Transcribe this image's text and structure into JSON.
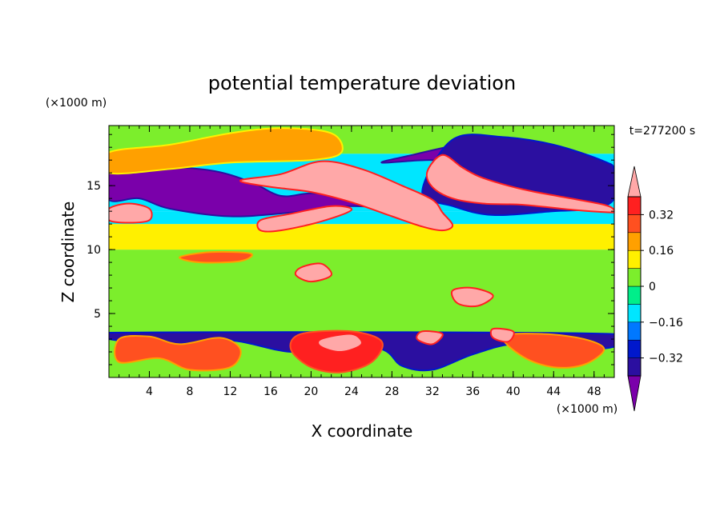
{
  "chart_data": {
    "type": "heatmap",
    "title": "potential temperature deviation",
    "time_label": "t=277200 s",
    "xlabel": "X coordinate",
    "ylabel": "Z coordinate",
    "x_unit": "(×1000 m)",
    "y_unit": "(×1000 m)",
    "xlim": [
      0,
      50
    ],
    "ylim": [
      0,
      19.7
    ],
    "x_ticks": [
      4,
      8,
      12,
      16,
      20,
      24,
      28,
      32,
      36,
      40,
      44,
      48
    ],
    "y_ticks": [
      5,
      10,
      15
    ],
    "colorbar": {
      "levels": [
        -0.4,
        -0.32,
        -0.24,
        -0.16,
        -0.08,
        0,
        0.08,
        0.16,
        0.24,
        0.32,
        0.4
      ],
      "tick_labels": [
        {
          "value": 0.32,
          "label": "0.32"
        },
        {
          "value": 0.16,
          "label": "0.16"
        },
        {
          "value": 0,
          "label": "0"
        },
        {
          "value": -0.16,
          "label": "−0.16"
        },
        {
          "value": -0.32,
          "label": "−0.32"
        }
      ],
      "colors": [
        "#7a00aa",
        "#2b0fa0",
        "#0018cc",
        "#0078ff",
        "#00e6ff",
        "#00ee8a",
        "#7cee2c",
        "#fff000",
        "#ffa000",
        "#ff5020",
        "#ff2020",
        "#ffa8a8"
      ],
      "extend": "both"
    },
    "features": [
      {
        "name": "upper-cold-band-west",
        "level": -0.45,
        "points": [
          [
            0,
            16.3
          ],
          [
            4,
            16.5
          ],
          [
            10,
            16.2
          ],
          [
            14,
            15.3
          ],
          [
            17,
            14.2
          ],
          [
            20,
            14.4
          ],
          [
            24,
            14.2
          ],
          [
            27,
            13.2
          ],
          [
            29,
            12.4
          ],
          [
            29,
            13.0
          ],
          [
            24,
            13.4
          ],
          [
            18,
            12.9
          ],
          [
            12,
            12.6
          ],
          [
            6,
            13.2
          ],
          [
            3,
            14.0
          ],
          [
            0,
            13.9
          ]
        ]
      },
      {
        "name": "upper-cold-band-east",
        "level": -0.45,
        "points": [
          [
            27,
            16.8
          ],
          [
            32,
            17.0
          ],
          [
            35,
            16.5
          ],
          [
            38,
            15.3
          ],
          [
            42,
            14.7
          ],
          [
            46,
            14.0
          ],
          [
            48.5,
            13.8
          ],
          [
            50,
            14.3
          ],
          [
            50,
            15.4
          ],
          [
            47,
            16.2
          ],
          [
            44,
            17.1
          ],
          [
            41,
            17.7
          ],
          [
            37,
            18.3
          ],
          [
            34,
            18.1
          ],
          [
            30,
            17.4
          ]
        ]
      },
      {
        "name": "deep-blue-east",
        "level": -0.36,
        "points": [
          [
            34,
            18.6
          ],
          [
            39,
            18.8
          ],
          [
            44,
            18.2
          ],
          [
            49,
            16.9
          ],
          [
            50,
            16.2
          ],
          [
            50,
            14.0
          ],
          [
            48,
            13.2
          ],
          [
            44,
            13.0
          ],
          [
            38,
            12.7
          ],
          [
            34,
            13.4
          ],
          [
            31,
            14.5
          ]
        ]
      },
      {
        "name": "warm-tongue-west",
        "level": 0.45,
        "points": [
          [
            13,
            15.4
          ],
          [
            17,
            15.9
          ],
          [
            21,
            16.9
          ],
          [
            25,
            16.3
          ],
          [
            29,
            15.0
          ],
          [
            32,
            13.9
          ],
          [
            33,
            12.9
          ],
          [
            34,
            11.9
          ],
          [
            33,
            11.5
          ],
          [
            31,
            11.8
          ],
          [
            28,
            12.6
          ],
          [
            24,
            13.7
          ],
          [
            20,
            14.5
          ],
          [
            16,
            14.9
          ]
        ]
      },
      {
        "name": "warm-tongue-east",
        "level": 0.45,
        "points": [
          [
            33,
            17.4
          ],
          [
            35,
            16.4
          ],
          [
            37,
            15.6
          ],
          [
            41,
            14.7
          ],
          [
            45,
            14.1
          ],
          [
            49,
            13.5
          ],
          [
            50,
            13.1
          ],
          [
            50,
            12.9
          ],
          [
            46,
            13.1
          ],
          [
            41,
            13.5
          ],
          [
            37,
            13.6
          ],
          [
            34,
            14.0
          ],
          [
            32,
            14.9
          ],
          [
            31.5,
            16.1
          ]
        ]
      },
      {
        "name": "warm-patch-mid",
        "level": 0.45,
        "points": [
          [
            15,
            12.3
          ],
          [
            18,
            12.8
          ],
          [
            22,
            13.4
          ],
          [
            24,
            13.1
          ],
          [
            21,
            12.2
          ],
          [
            17,
            11.5
          ],
          [
            15,
            11.5
          ]
        ]
      },
      {
        "name": "warm-patch-left",
        "level": 0.45,
        "points": [
          [
            0,
            13.2
          ],
          [
            2,
            13.6
          ],
          [
            4,
            13.2
          ],
          [
            4,
            12.3
          ],
          [
            2,
            12.1
          ],
          [
            0,
            12.3
          ]
        ]
      },
      {
        "name": "top-warm-arc",
        "level": 0.3,
        "points": [
          [
            1,
            17.2
          ],
          [
            6,
            17.7
          ],
          [
            12,
            18.6
          ],
          [
            17,
            19.0
          ],
          [
            21,
            18.7
          ],
          [
            22,
            17.5
          ],
          [
            18,
            17.6
          ],
          [
            12,
            17.2
          ],
          [
            7,
            16.6
          ],
          [
            1,
            16.2
          ]
        ]
      },
      {
        "name": "top-yellow-arc",
        "level": 0.18,
        "points": [
          [
            0,
            17.6
          ],
          [
            6,
            18.2
          ],
          [
            12,
            19.1
          ],
          [
            17,
            19.5
          ],
          [
            22,
            19.1
          ],
          [
            23,
            17.6
          ],
          [
            20,
            17.0
          ],
          [
            12,
            16.8
          ],
          [
            6,
            16.3
          ],
          [
            0,
            16.0
          ]
        ]
      },
      {
        "name": "mid-warm-9km",
        "level": 0.3,
        "points": [
          [
            7,
            9.4
          ],
          [
            10,
            9.8
          ],
          [
            14,
            9.7
          ],
          [
            13,
            9.1
          ],
          [
            9,
            9.0
          ]
        ]
      },
      {
        "name": "mid-warm-7km",
        "level": 0.45,
        "points": [
          [
            19,
            8.6
          ],
          [
            21,
            8.9
          ],
          [
            22,
            8.0
          ],
          [
            20,
            7.5
          ],
          [
            18.5,
            8.0
          ]
        ]
      },
      {
        "name": "warm-cloud-36",
        "level": 0.45,
        "points": [
          [
            34,
            6.8
          ],
          [
            36,
            7.0
          ],
          [
            38,
            6.4
          ],
          [
            36.5,
            5.6
          ],
          [
            34.5,
            5.8
          ]
        ]
      },
      {
        "name": "low-cold-band",
        "level": -0.36,
        "points": [
          [
            0,
            3.5
          ],
          [
            50,
            3.4
          ],
          [
            50,
            2.4
          ],
          [
            44,
            2.1
          ],
          [
            40,
            2.6
          ],
          [
            36,
            1.8
          ],
          [
            32,
            0.6
          ],
          [
            29,
            0.9
          ],
          [
            27,
            2.2
          ],
          [
            22,
            2.6
          ],
          [
            18,
            2.0
          ],
          [
            12,
            2.9
          ],
          [
            6,
            2.6
          ],
          [
            0,
            3.0
          ]
        ]
      },
      {
        "name": "low-warm-cluster-west",
        "level": 0.3,
        "points": [
          [
            1,
            3.0
          ],
          [
            4,
            3.2
          ],
          [
            7,
            2.6
          ],
          [
            11,
            3.1
          ],
          [
            13,
            2.2
          ],
          [
            12,
            0.8
          ],
          [
            8,
            0.6
          ],
          [
            5,
            1.5
          ],
          [
            1,
            1.2
          ]
        ]
      },
      {
        "name": "low-warm-cluster-mid",
        "level": 0.36,
        "points": [
          [
            19,
            3.4
          ],
          [
            24,
            3.6
          ],
          [
            27,
            2.8
          ],
          [
            26,
            1.2
          ],
          [
            23,
            0.4
          ],
          [
            20,
            0.8
          ],
          [
            18,
            2.2
          ]
        ]
      },
      {
        "name": "low-warm-cluster-east",
        "level": 0.3,
        "points": [
          [
            39,
            3.2
          ],
          [
            43,
            3.4
          ],
          [
            47,
            3.0
          ],
          [
            49,
            2.2
          ],
          [
            47,
            1.0
          ],
          [
            44,
            0.8
          ],
          [
            41,
            1.6
          ]
        ]
      },
      {
        "name": "low-pink-23",
        "level": 0.45,
        "points": [
          [
            21,
            3.0
          ],
          [
            24,
            3.4
          ],
          [
            25,
            2.6
          ],
          [
            23,
            2.0
          ],
          [
            21,
            2.4
          ]
        ]
      },
      {
        "name": "low-pink-32",
        "level": 0.45,
        "points": [
          [
            31,
            3.6
          ],
          [
            33,
            3.4
          ],
          [
            32,
            2.6
          ],
          [
            30.5,
            3.0
          ]
        ]
      },
      {
        "name": "low-pink-38",
        "level": 0.45,
        "points": [
          [
            38,
            3.8
          ],
          [
            40,
            3.6
          ],
          [
            39.5,
            2.8
          ],
          [
            38,
            3.1
          ]
        ]
      }
    ]
  }
}
